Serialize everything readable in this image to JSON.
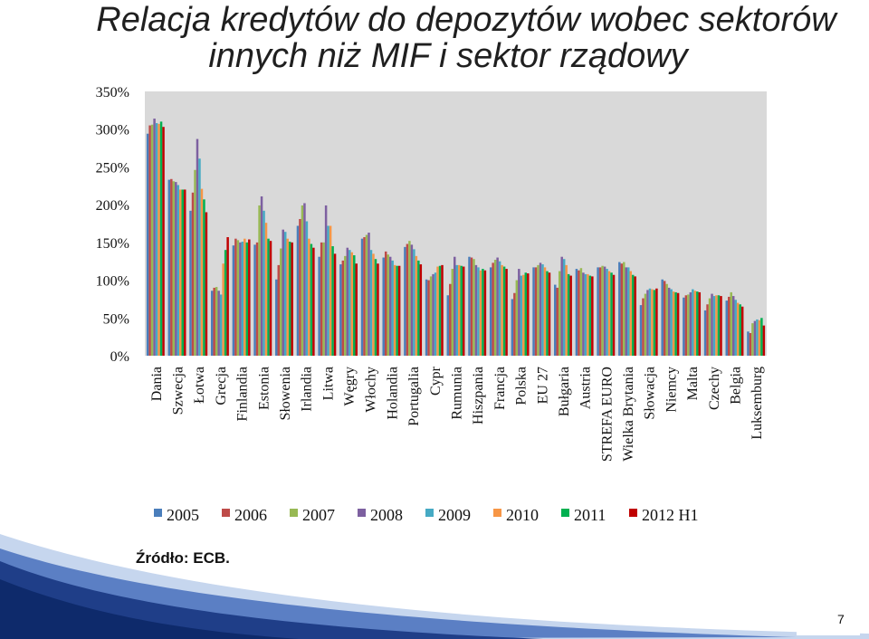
{
  "slide": {
    "title_line1": "Relacja kredytów do depozytów wobec sektorów",
    "title_line2": "innych niż MIF i sektor rządowy",
    "source": "Źródło: ECB.",
    "page_number": "7"
  },
  "chart_data": {
    "type": "bar",
    "ylim": [
      0,
      350
    ],
    "yticks": [
      0,
      50,
      100,
      150,
      200,
      250,
      300,
      350
    ],
    "ytick_labels": [
      "0%",
      "50%",
      "100%",
      "150%",
      "200%",
      "250%",
      "300%",
      "350%"
    ],
    "grid": false,
    "legend_position": "bottom",
    "categories": [
      "Dania",
      "Szwecja",
      "Łotwa",
      "Grecja",
      "Finlandia",
      "Estonia",
      "Słowenia",
      "Irlandia",
      "Litwa",
      "Węgry",
      "Włochy",
      "Holandia",
      "Portugalia",
      "Cypr",
      "Rumunia",
      "Hiszpania",
      "Francja",
      "Polska",
      "EU 27",
      "Bułgaria",
      "Austria",
      "STREFA EURO",
      "Wielka Brytania",
      "Słowacja",
      "Niemcy",
      "Malta",
      "Czechy",
      "Belgia",
      "Luksemburg"
    ],
    "series": [
      {
        "name": "2005",
        "color": "#4a7ebb",
        "values": [
          294,
          233,
          192,
          86,
          146,
          147,
          101,
          172,
          131,
          121,
          155,
          130,
          144,
          101,
          80,
          131,
          117,
          75,
          117,
          94,
          115,
          117,
          124,
          67,
          101,
          77,
          60,
          73,
          32
        ]
      },
      {
        "name": "2006",
        "color": "#be4b48",
        "values": [
          305,
          234,
          216,
          90,
          155,
          150,
          120,
          181,
          150,
          126,
          157,
          138,
          148,
          100,
          95,
          130,
          123,
          83,
          117,
          90,
          113,
          117,
          122,
          76,
          99,
          80,
          68,
          78,
          30
        ]
      },
      {
        "name": "2007",
        "color": "#98b954",
        "values": [
          306,
          231,
          246,
          91,
          153,
          199,
          142,
          199,
          150,
          132,
          160,
          134,
          152,
          105,
          115,
          128,
          127,
          100,
          120,
          112,
          116,
          119,
          124,
          82,
          95,
          81,
          76,
          84,
          43
        ]
      },
      {
        "name": "2008",
        "color": "#7d60a0",
        "values": [
          314,
          230,
          287,
          86,
          150,
          211,
          167,
          202,
          199,
          143,
          163,
          131,
          147,
          108,
          131,
          120,
          130,
          115,
          123,
          131,
          110,
          118,
          117,
          87,
          90,
          84,
          82,
          79,
          46
        ]
      },
      {
        "name": "2009",
        "color": "#46aac4",
        "values": [
          308,
          226,
          261,
          81,
          151,
          192,
          164,
          178,
          172,
          140,
          140,
          126,
          141,
          110,
          120,
          117,
          125,
          106,
          121,
          128,
          108,
          115,
          117,
          89,
          88,
          88,
          79,
          74,
          48
        ]
      },
      {
        "name": "2010",
        "color": "#f79646",
        "values": [
          307,
          220,
          221,
          122,
          155,
          176,
          155,
          155,
          172,
          137,
          135,
          120,
          132,
          118,
          120,
          113,
          120,
          107,
          117,
          120,
          108,
          112,
          112,
          88,
          85,
          86,
          80,
          70,
          47
        ]
      },
      {
        "name": "2011",
        "color": "#00b050",
        "values": [
          310,
          220,
          207,
          140,
          150,
          155,
          151,
          148,
          145,
          133,
          128,
          119,
          126,
          119,
          119,
          115,
          118,
          110,
          112,
          108,
          106,
          110,
          107,
          87,
          84,
          85,
          80,
          68,
          50
        ]
      },
      {
        "name": "2012 H1",
        "color": "#c00000",
        "values": [
          303,
          220,
          190,
          157,
          154,
          152,
          150,
          143,
          135,
          122,
          122,
          119,
          121,
          120,
          118,
          113,
          115,
          109,
          110,
          106,
          105,
          107,
          105,
          89,
          83,
          84,
          79,
          65,
          40
        ]
      }
    ]
  }
}
